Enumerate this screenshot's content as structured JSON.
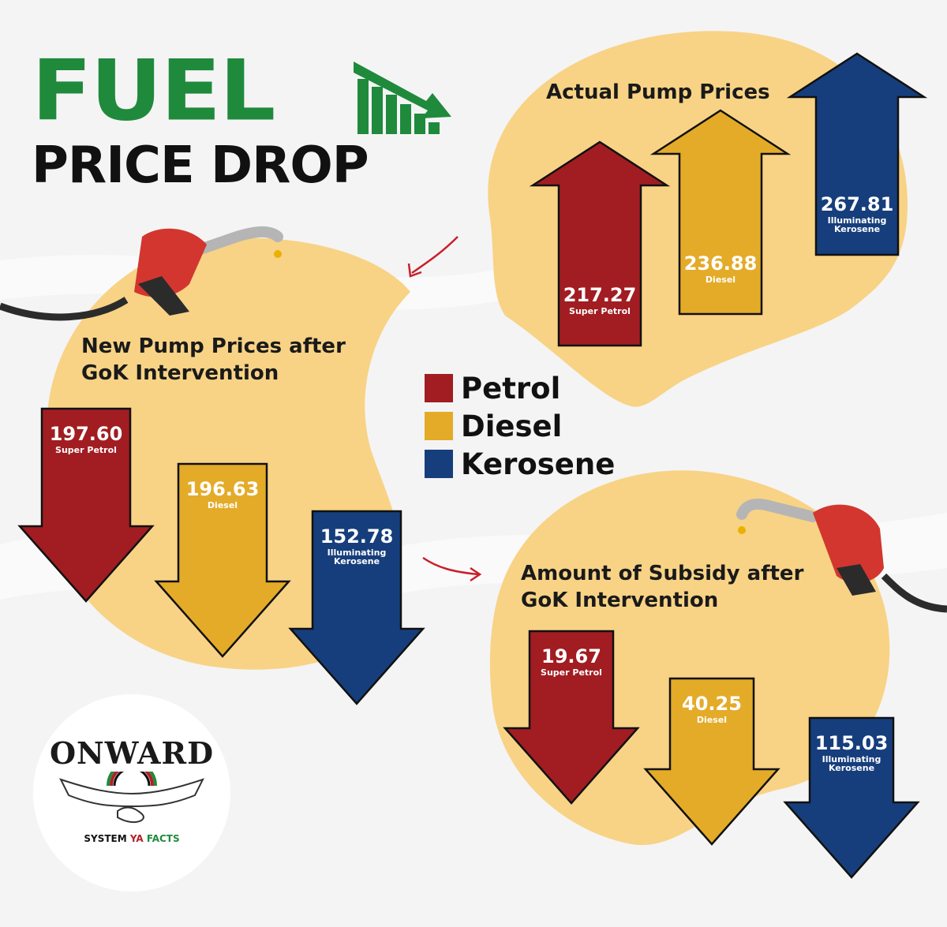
{
  "title": {
    "line1": "FUEL",
    "line2": "PRICE DROP"
  },
  "colors": {
    "petrol": "#a11d22",
    "diesel": "#e4ab29",
    "kerosene": "#163e7c",
    "blob": "#f8d385",
    "brand_green": "#1f8a3b"
  },
  "legend": [
    {
      "label": "Petrol",
      "color": "#a11d22"
    },
    {
      "label": "Diesel",
      "color": "#e4ab29"
    },
    {
      "label": "Kerosene",
      "color": "#163e7c"
    }
  ],
  "chart_data": [
    {
      "type": "bar",
      "title": "Actual Pump Prices",
      "direction": "up",
      "categories": [
        "Super Petrol",
        "Diesel",
        "Illuminating Kerosene"
      ],
      "values": [
        217.27,
        236.88,
        267.81
      ],
      "value_labels": [
        "217.27",
        "236.88",
        "267.81"
      ]
    },
    {
      "type": "bar",
      "title": "New Pump Prices after GoK Intervention",
      "direction": "down",
      "categories": [
        "Super Petrol",
        "Diesel",
        "Illuminating Kerosene"
      ],
      "values": [
        197.6,
        196.63,
        152.78
      ],
      "value_labels": [
        "197.60",
        "196.63",
        "152.78"
      ]
    },
    {
      "type": "bar",
      "title": "Amount of Subsidy after GoK Intervention",
      "direction": "down",
      "categories": [
        "Super Petrol",
        "Diesel",
        "Illuminating Kerosene"
      ],
      "values": [
        19.67,
        40.25,
        115.03
      ],
      "value_labels": [
        "19.67",
        "40.25",
        "115.03"
      ]
    }
  ],
  "logo": {
    "word": "ONWARD",
    "tagline_1": "SYSTEM",
    "tagline_2": "YA",
    "tagline_3": "FACTS"
  },
  "icons": [
    "bar-chart-down-icon",
    "fuel-nozzle-icon",
    "curved-arrow-icon",
    "handshake-icon"
  ]
}
